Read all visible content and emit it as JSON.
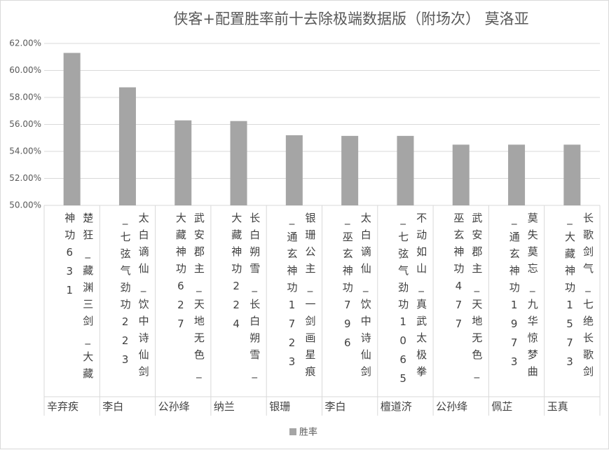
{
  "chart_data": {
    "type": "bar",
    "title": "侠客+配置胜率前十去除极端数据版（附场次） 莫洛亚",
    "categories": [
      "楚狂_藏渊三剑_大藏神功631",
      "太白谪仙_饮中诗仙剑_七弦气劲功223",
      "武安郡主_天地无色_大藏神功627",
      "长白朔雪_长白朔雪_大藏神功224",
      "银珊公主_一剑画星痕_通玄神功1723",
      "太白谪仙_饮中诗仙剑_巫玄神功796",
      "不动如山_真武太极拳_七弦气劲功1065",
      "武安郡主_天地无色_巫玄神功477",
      "莫失莫忘_九华惊梦曲_通玄神功1973",
      "长歌剑气_七绝长歌剑_大藏神功1573"
    ],
    "groups": [
      "辛弃疾",
      "李白",
      "公孙绛",
      "纳兰",
      "银珊",
      "李白",
      "檀道济",
      "公孙绛",
      "佩芷",
      "玉真"
    ],
    "series": [
      {
        "name": "胜率",
        "color": "#a5a5a5",
        "values": [
          61.3,
          58.75,
          56.3,
          56.25,
          55.2,
          55.15,
          55.15,
          54.5,
          54.5,
          54.5
        ]
      }
    ],
    "ylim": [
      50,
      62
    ],
    "yticks": [
      {
        "value": 50,
        "label": "50.00%"
      },
      {
        "value": 52,
        "label": "52.00%"
      },
      {
        "value": 54,
        "label": "54.00%"
      },
      {
        "value": 56,
        "label": "56.00%"
      },
      {
        "value": 58,
        "label": "58.00%"
      },
      {
        "value": 60,
        "label": "60.00%"
      },
      {
        "value": 62,
        "label": "62.00%"
      }
    ],
    "grid": true,
    "legend": "bottom"
  }
}
